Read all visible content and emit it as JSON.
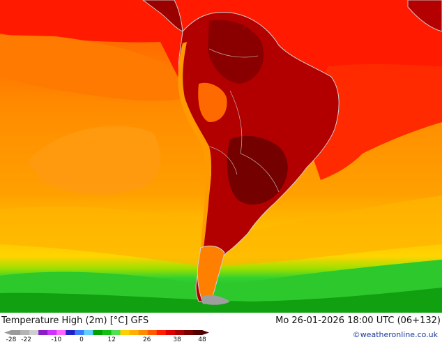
{
  "map": {
    "title": "Temperature High (2m) [°C] GFS",
    "datetime": "Mo 26-01-2026 18:00 UTC (06+132)",
    "credit": "©weatheronline.co.uk",
    "region": "South America",
    "legend": {
      "ticks": [
        "-28",
        "-22",
        "-10",
        "0",
        "12",
        "26",
        "38",
        "48"
      ],
      "colors": [
        "#9a9a9a",
        "#b4b4b4",
        "#cfcfcf",
        "#8c1cc8",
        "#cc33ff",
        "#ff66ff",
        "#2020c8",
        "#3c7cff",
        "#60d0ff",
        "#00a000",
        "#12c012",
        "#52e052",
        "#ffd000",
        "#ffb000",
        "#ff8c00",
        "#ff5a00",
        "#ff1e00",
        "#dd0000",
        "#aa0000",
        "#7a0000",
        "#500000"
      ]
    },
    "colors": {
      "ocean_warm": "#ff8c00",
      "ocean_mid": "#ffa800",
      "ocean_cool": "#ffc800",
      "cold_band": "#28d028",
      "land_hot": "#b00000",
      "land_very_hot": "#6a0000",
      "tropics_red": "#ff2000"
    }
  }
}
